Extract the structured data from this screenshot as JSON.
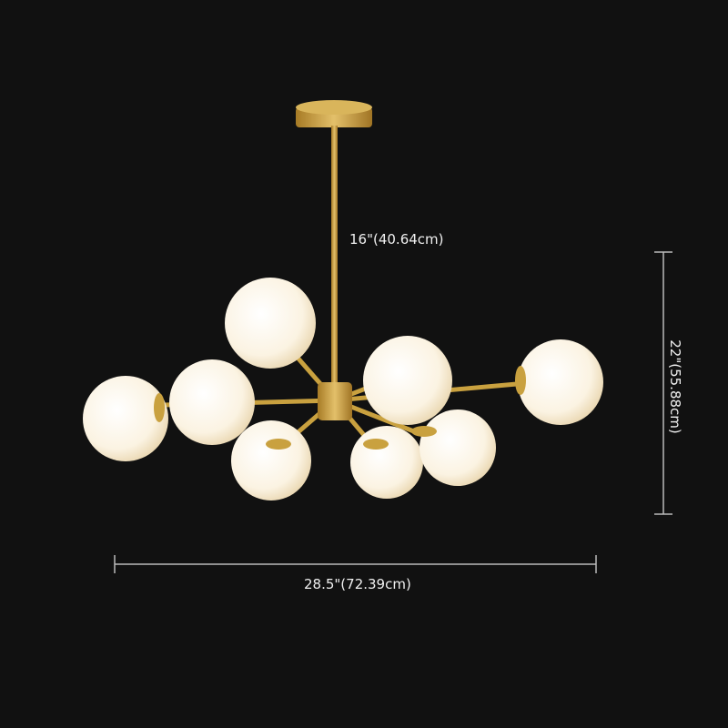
{
  "product": "chandelier",
  "dimensions": {
    "rod_length": "16\"(40.64cm)",
    "height": "22\"(55.88cm)",
    "width": "28.5\"(72.39cm)"
  },
  "colors": {
    "background": "#111111",
    "brass": "#c9a13f",
    "globe": "#fbf6ea",
    "dimension_line": "#bbbbbb"
  }
}
